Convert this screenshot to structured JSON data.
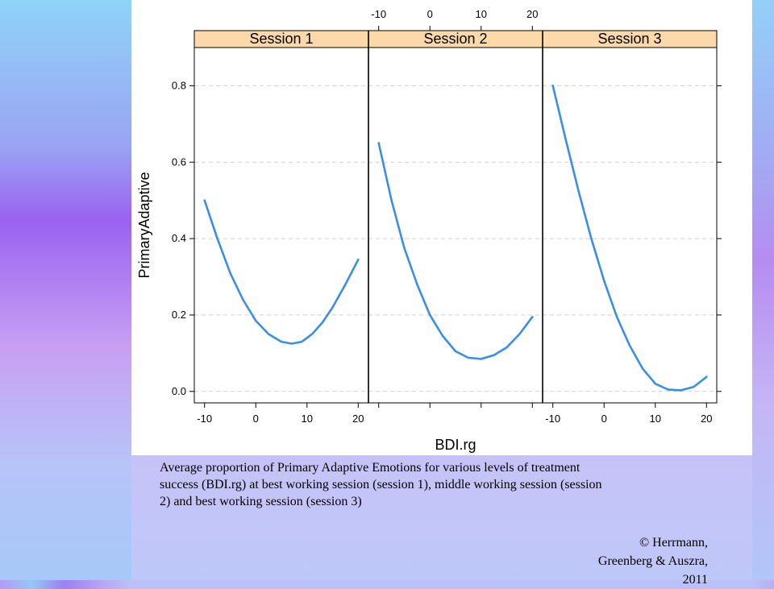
{
  "caption": "Average proportion of Primary Adaptive Emotions for various levels of treatment success (BDI.rg) at best working session (session 1), middle working session (session 2) and best working session (session 3)",
  "credit": [
    "© Herrmann,",
    "Greenberg & Auszra,",
    "2011"
  ],
  "chart_data": {
    "type": "line",
    "xlabel": "BDI.rg",
    "ylabel": "PrimaryAdaptive",
    "xlim": [
      -12,
      22
    ],
    "ylim": [
      -0.03,
      0.9
    ],
    "x_ticks": [
      -10,
      0,
      10,
      20
    ],
    "x_tick_labels": [
      "-10",
      "0",
      "10",
      "20"
    ],
    "y_ticks": [
      0.0,
      0.2,
      0.4,
      0.6,
      0.8
    ],
    "y_tick_labels": [
      "0.0",
      "0.2",
      "0.4",
      "0.6",
      "0.8"
    ],
    "grid": "horizontal dashed",
    "line_color": "#3b8ee8",
    "strip_color": "#fcd9a8",
    "panels": [
      {
        "strip": "Session 1",
        "x": [
          -10,
          -7.5,
          -5,
          -2.5,
          0,
          2.5,
          5,
          7,
          9,
          11,
          13,
          15,
          17.5,
          20
        ],
        "y": [
          0.5,
          0.4,
          0.31,
          0.24,
          0.185,
          0.15,
          0.13,
          0.125,
          0.13,
          0.15,
          0.18,
          0.22,
          0.28,
          0.345
        ]
      },
      {
        "strip": "Session 2",
        "x": [
          -10,
          -7.5,
          -5,
          -2.5,
          0,
          2.5,
          5,
          7.5,
          10,
          12.5,
          15,
          17.5,
          20
        ],
        "y": [
          0.65,
          0.5,
          0.375,
          0.28,
          0.2,
          0.145,
          0.105,
          0.088,
          0.085,
          0.095,
          0.115,
          0.15,
          0.195
        ]
      },
      {
        "strip": "Session 3",
        "x": [
          -10,
          -7.5,
          -5,
          -2.5,
          0,
          2.5,
          5,
          7.5,
          10,
          12.5,
          15,
          17.5,
          20
        ],
        "y": [
          0.8,
          0.66,
          0.525,
          0.4,
          0.29,
          0.195,
          0.12,
          0.06,
          0.02,
          0.005,
          0.003,
          0.012,
          0.038
        ]
      }
    ]
  }
}
